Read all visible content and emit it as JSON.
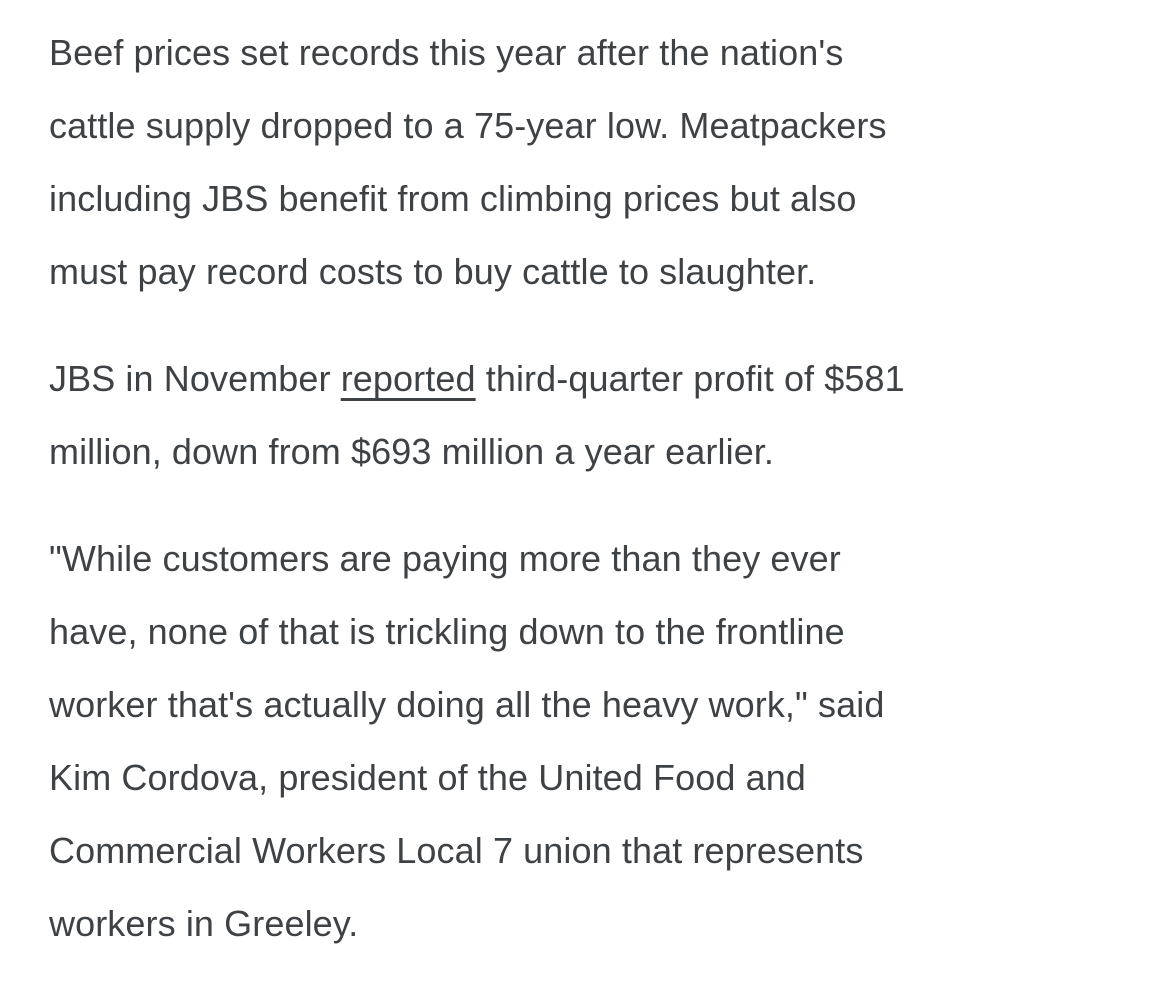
{
  "article": {
    "text_color": "#3F4245",
    "background_color": "#ffffff",
    "paragraph1": {
      "l1": "Beef prices set records this year after the nation's",
      "l2": "cattle supply dropped to a 75-year low. Meatpackers",
      "l3": "including JBS benefit from climbing prices but also",
      "l4": "must pay record costs to buy cattle to slaughter."
    },
    "paragraph2": {
      "l1_pre": "JBS in November",
      "link_label": "reported",
      "l1_post": "third-quarter profit of $581",
      "l2": "million, down from $693 million a year earlier."
    },
    "paragraph3": {
      "l1": "\"While customers are paying more than they ever",
      "l2": "have, none of that is trickling down to the frontline",
      "l3": "worker that's actually doing all the heavy work,\" said",
      "l4": "Kim Cordova, president of the United Food and",
      "l5": "Commercial Workers Local 7 union that represents",
      "l6": "workers in Greeley."
    }
  }
}
